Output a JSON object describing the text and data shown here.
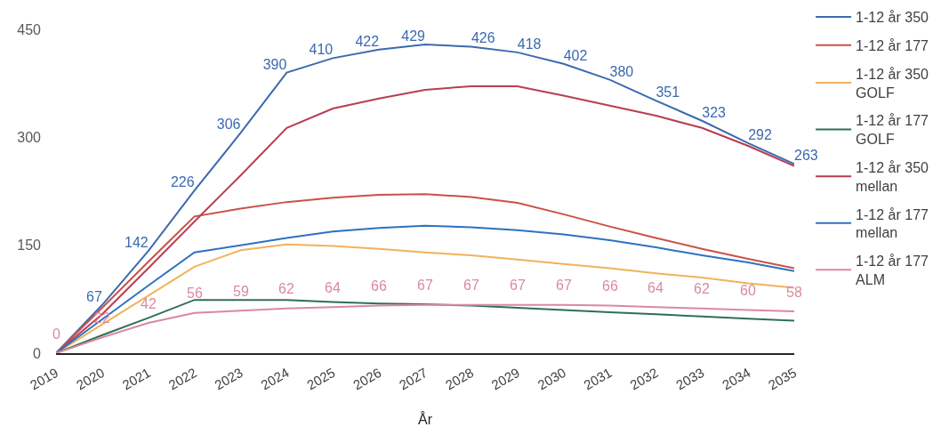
{
  "chart_data": {
    "type": "line",
    "xlabel": "År",
    "categories": [
      "2019",
      "2020",
      "2021",
      "2022",
      "2023",
      "2024",
      "2025",
      "2026",
      "2027",
      "2028",
      "2029",
      "2030",
      "2031",
      "2032",
      "2033",
      "2034",
      "2035"
    ],
    "series": [
      {
        "name": "1-12 år 350",
        "color": "#3a6ab0",
        "values": [
          0,
          67,
          142,
          226,
          306,
          390,
          410,
          422,
          429,
          426,
          418,
          402,
          380,
          351,
          323,
          292,
          263
        ],
        "value_labels": [
          null,
          "67",
          "142",
          "226",
          "306",
          "390",
          "410",
          "422",
          "429",
          "426",
          "418",
          "402",
          "380",
          "351",
          "323",
          "292",
          "263"
        ]
      },
      {
        "name": "1-12 år 177",
        "color": "#c8524a",
        "values": [
          0,
          63,
          127,
          190,
          201,
          210,
          216,
          220,
          221,
          217,
          209,
          193,
          176,
          160,
          145,
          131,
          118
        ]
      },
      {
        "name": "1-12 år 350 GOLF",
        "color": "#f0b35a",
        "values": [
          0,
          40,
          80,
          120,
          143,
          151,
          149,
          145,
          140,
          136,
          130,
          124,
          118,
          111,
          105,
          97,
          91
        ]
      },
      {
        "name": "1-12 år 177 GOLF",
        "color": "#2f6e5a",
        "values": [
          0,
          25,
          49,
          74,
          74,
          74,
          71,
          69,
          68,
          66,
          63,
          60,
          57,
          54,
          51,
          48,
          45
        ]
      },
      {
        "name": "1-12 år 350 mellan",
        "color": "#b83e52",
        "values": [
          0,
          54,
          118,
          183,
          247,
          313,
          340,
          354,
          366,
          371,
          371,
          358,
          344,
          330,
          313,
          288,
          260
        ]
      },
      {
        "name": "1-12 år 177 mellan",
        "color": "#2d72c0",
        "values": [
          0,
          47,
          94,
          140,
          150,
          160,
          169,
          174,
          177,
          175,
          171,
          165,
          157,
          147,
          136,
          126,
          114
        ]
      },
      {
        "name": "1-12 år 177 ALM",
        "color": "#d98a9e",
        "values": [
          0,
          22,
          42,
          56,
          59,
          62,
          64,
          66,
          67,
          67,
          67,
          67,
          66,
          64,
          62,
          60,
          58
        ],
        "value_labels": [
          "0",
          "22",
          "42",
          "56",
          "59",
          "62",
          "64",
          "66",
          "67",
          "67",
          "67",
          "67",
          "66",
          "64",
          "62",
          "60",
          "58"
        ]
      }
    ],
    "ylim": [
      0,
      450
    ],
    "yticks": [
      0,
      150,
      300,
      450
    ],
    "grid": false,
    "legend": "right",
    "marker": "none"
  }
}
